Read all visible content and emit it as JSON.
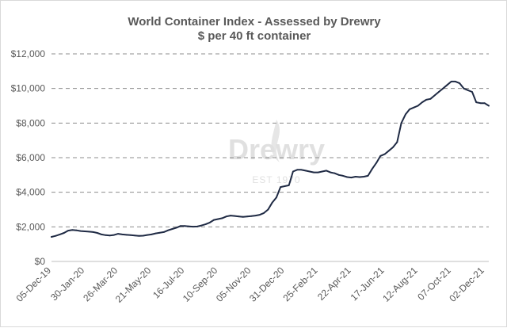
{
  "chart_data": {
    "type": "line",
    "title": "World Container Index - Assessed by Drewry",
    "subtitle": "$ per 40 ft container",
    "xlabel": "",
    "ylabel": "",
    "ylim": [
      0,
      12000
    ],
    "grid": true,
    "y_ticks": [
      "$0",
      "$2,000",
      "$4,000",
      "$6,000",
      "$8,000",
      "$10,000",
      "$12,000"
    ],
    "y_tick_values": [
      0,
      2000,
      4000,
      6000,
      8000,
      10000,
      12000
    ],
    "x_tick_labels": [
      "05-Dec-19",
      "30-Jan-20",
      "26-Mar-20",
      "21-May-20",
      "16-Jul-20",
      "10-Sep-20",
      "05-Nov-20",
      "31-Dec-20",
      "25-Feb-21",
      "22-Apr-21",
      "17-Jun-21",
      "12-Aug-21",
      "07-Oct-21",
      "02-Dec-21"
    ],
    "x_tick_weeks": [
      0,
      8,
      16,
      24,
      32,
      40,
      48,
      56,
      64,
      72,
      80,
      88,
      96,
      104
    ],
    "week_range": [
      0,
      105
    ],
    "watermark": {
      "brand": "Drewry",
      "established": "EST 1970"
    },
    "series": [
      {
        "name": "World Container Index",
        "color": "#1f2a44",
        "values": [
          1420,
          1480,
          1560,
          1650,
          1780,
          1820,
          1800,
          1760,
          1740,
          1720,
          1700,
          1650,
          1560,
          1520,
          1500,
          1530,
          1600,
          1560,
          1540,
          1520,
          1500,
          1480,
          1490,
          1530,
          1560,
          1620,
          1660,
          1700,
          1800,
          1880,
          1950,
          2050,
          2050,
          2030,
          2010,
          2020,
          2080,
          2150,
          2250,
          2400,
          2450,
          2500,
          2600,
          2650,
          2630,
          2600,
          2580,
          2600,
          2620,
          2650,
          2700,
          2800,
          3000,
          3400,
          3700,
          4300,
          4350,
          4400,
          5200,
          5300,
          5300,
          5250,
          5200,
          5150,
          5150,
          5200,
          5250,
          5150,
          5100,
          5000,
          4950,
          4880,
          4850,
          4900,
          4880,
          4900,
          4950,
          5350,
          5700,
          6100,
          6200,
          6400,
          6600,
          6900,
          8000,
          8500,
          8800,
          8900,
          9000,
          9200,
          9350,
          9400,
          9600,
          9800,
          10000,
          10200,
          10400,
          10400,
          10300,
          10000,
          9900,
          9800,
          9200,
          9150,
          9150,
          9000
        ]
      }
    ]
  }
}
